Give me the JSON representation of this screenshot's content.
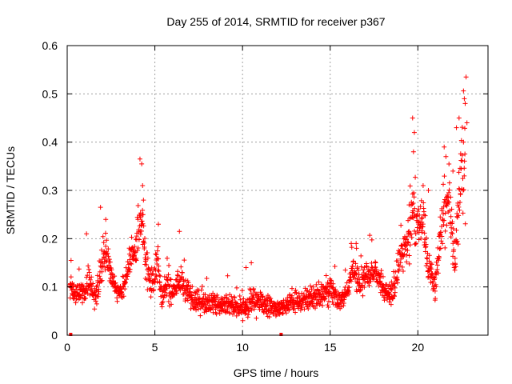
{
  "chart_data": {
    "type": "scatter",
    "title": "Day 255 of 2014, SRMTID for receiver p367",
    "xlabel": "GPS time / hours",
    "ylabel": "SRMTID / TECUs",
    "xlim": [
      0,
      24
    ],
    "ylim": [
      0,
      0.6
    ],
    "x_ticks": [
      0,
      5,
      10,
      15,
      20
    ],
    "y_ticks": [
      0,
      0.1,
      0.2,
      0.3,
      0.4,
      0.5,
      0.6
    ],
    "x_tick_labels": [
      "0",
      "5",
      "10",
      "15",
      "20"
    ],
    "y_tick_labels": [
      "0",
      "0.1",
      "0.2",
      "0.3",
      "0.4",
      "0.5",
      "0.6"
    ],
    "grid": true,
    "marker": "+",
    "series": [
      {
        "name": "SRMTID",
        "color": "#ff0000",
        "profile": [
          [
            0.15,
            0.1,
            0.035
          ],
          [
            0.5,
            0.085,
            0.03
          ],
          [
            1.0,
            0.09,
            0.035
          ],
          [
            1.3,
            0.11,
            0.04
          ],
          [
            1.6,
            0.08,
            0.035
          ],
          [
            1.9,
            0.13,
            0.04
          ],
          [
            2.1,
            0.17,
            0.05
          ],
          [
            2.4,
            0.14,
            0.04
          ],
          [
            2.7,
            0.1,
            0.035
          ],
          [
            3.0,
            0.085,
            0.03
          ],
          [
            3.3,
            0.11,
            0.035
          ],
          [
            3.6,
            0.16,
            0.045
          ],
          [
            3.9,
            0.18,
            0.045
          ],
          [
            4.1,
            0.22,
            0.06
          ],
          [
            4.3,
            0.24,
            0.07
          ],
          [
            4.5,
            0.14,
            0.045
          ],
          [
            4.8,
            0.11,
            0.04
          ],
          [
            5.1,
            0.15,
            0.05
          ],
          [
            5.4,
            0.08,
            0.035
          ],
          [
            5.7,
            0.1,
            0.04
          ],
          [
            6.0,
            0.09,
            0.035
          ],
          [
            6.5,
            0.11,
            0.045
          ],
          [
            7.0,
            0.08,
            0.035
          ],
          [
            7.5,
            0.07,
            0.03
          ],
          [
            8.0,
            0.07,
            0.03
          ],
          [
            8.5,
            0.065,
            0.03
          ],
          [
            9.0,
            0.06,
            0.03
          ],
          [
            9.5,
            0.06,
            0.03
          ],
          [
            10.0,
            0.05,
            0.03
          ],
          [
            10.5,
            0.07,
            0.035
          ],
          [
            11.0,
            0.07,
            0.03
          ],
          [
            11.5,
            0.06,
            0.03
          ],
          [
            12.0,
            0.055,
            0.025
          ],
          [
            12.5,
            0.06,
            0.025
          ],
          [
            13.0,
            0.07,
            0.03
          ],
          [
            13.5,
            0.075,
            0.03
          ],
          [
            14.0,
            0.08,
            0.035
          ],
          [
            14.5,
            0.08,
            0.035
          ],
          [
            15.0,
            0.1,
            0.04
          ],
          [
            15.5,
            0.07,
            0.03
          ],
          [
            16.0,
            0.09,
            0.035
          ],
          [
            16.3,
            0.14,
            0.045
          ],
          [
            16.7,
            0.1,
            0.04
          ],
          [
            17.0,
            0.12,
            0.04
          ],
          [
            17.5,
            0.14,
            0.04
          ],
          [
            17.9,
            0.11,
            0.04
          ],
          [
            18.2,
            0.08,
            0.035
          ],
          [
            18.6,
            0.1,
            0.04
          ],
          [
            19.0,
            0.16,
            0.05
          ],
          [
            19.4,
            0.18,
            0.06
          ],
          [
            19.7,
            0.28,
            0.12
          ],
          [
            20.0,
            0.22,
            0.06
          ],
          [
            20.3,
            0.25,
            0.06
          ],
          [
            20.6,
            0.14,
            0.05
          ],
          [
            21.0,
            0.1,
            0.04
          ],
          [
            21.4,
            0.25,
            0.1
          ],
          [
            21.8,
            0.28,
            0.08
          ],
          [
            22.1,
            0.15,
            0.06
          ],
          [
            22.4,
            0.3,
            0.12
          ],
          [
            22.7,
            0.35,
            0.15
          ]
        ],
        "spikes": [
          [
            0.22,
            0.155
          ],
          [
            1.1,
            0.21
          ],
          [
            1.9,
            0.265
          ],
          [
            2.2,
            0.24
          ],
          [
            4.15,
            0.365
          ],
          [
            4.25,
            0.355
          ],
          [
            4.3,
            0.31
          ],
          [
            4.35,
            0.28
          ],
          [
            5.2,
            0.23
          ],
          [
            6.4,
            0.215
          ],
          [
            10.2,
            0.14
          ],
          [
            10.5,
            0.15
          ],
          [
            16.2,
            0.19
          ],
          [
            16.5,
            0.18
          ],
          [
            19.5,
            0.27
          ],
          [
            19.7,
            0.45
          ],
          [
            19.8,
            0.42
          ],
          [
            19.75,
            0.38
          ],
          [
            20.3,
            0.31
          ],
          [
            20.6,
            0.3
          ],
          [
            21.5,
            0.39
          ],
          [
            21.6,
            0.37
          ],
          [
            22.0,
            0.34
          ],
          [
            22.2,
            0.43
          ],
          [
            22.35,
            0.45
          ],
          [
            22.65,
            0.49
          ],
          [
            22.7,
            0.48
          ],
          [
            22.75,
            0.535
          ],
          [
            22.8,
            0.44
          ],
          [
            22.6,
            0.4
          ]
        ],
        "zero_points": [
          [
            0.2,
            0.0
          ],
          [
            12.2,
            0.0
          ]
        ]
      }
    ]
  }
}
